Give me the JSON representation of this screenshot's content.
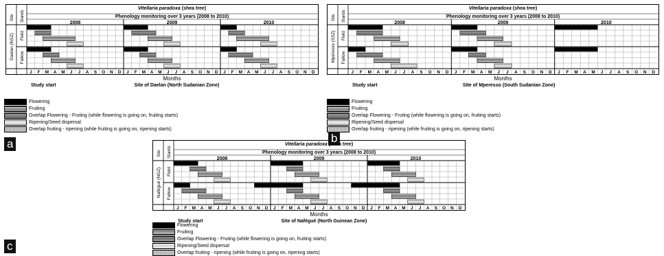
{
  "legend_items": [
    {
      "key": "flowering",
      "label": "Flowering",
      "pattern": "flower"
    },
    {
      "key": "fruiting",
      "label": "Fruiting",
      "pattern": "fruit"
    },
    {
      "key": "overlap_ff",
      "label": "Overlap Flowering - Fruting (while flowering is going on, fruiting starts)",
      "pattern": "overlap1"
    },
    {
      "key": "ripening",
      "label": "Ripening/Seed dispersal",
      "pattern": "ripen"
    },
    {
      "key": "overlap_fr",
      "label": "Overlap fruiting - ripening (while fruiting is going on, ripening starts)",
      "pattern": "overlap2"
    }
  ],
  "common": {
    "species": "Vitellaria paradoxa",
    "species_suffix": " (shea tree)",
    "subtitle": "Phenology monitoring over 3 years (2008 to 2010)",
    "years": [
      "2008",
      "2009",
      "2010"
    ],
    "months": [
      "J",
      "F",
      "M",
      "A",
      "M",
      "J",
      "J",
      "A",
      "S",
      "O",
      "N",
      "D"
    ],
    "xlabel": "Months",
    "study_start": "Study start",
    "col_site": "Site",
    "col_stands": "Stands",
    "stand_field": "Field",
    "stand_fallow": "Fallow"
  },
  "panels": [
    {
      "id": "a",
      "badge": "a",
      "site": "Daelan (NSZ)",
      "site_label": "Site of Daelan (North Sudanian Zone)"
    },
    {
      "id": "b",
      "badge": "b",
      "site": "Mperesso (SSZ)",
      "site_label": "Site of Mperesso (South Sudanian Zone)"
    },
    {
      "id": "c",
      "badge": "c",
      "site": "Nafégué (NGZ)",
      "site_label": "Site of Nafégué (North Guinean Zone)"
    }
  ],
  "colors": {
    "flower": "#000000",
    "fruit": "#555555",
    "overlap1": "#666666",
    "ripen": "#bbbbbb",
    "overlap2": "#999999",
    "grid": "#888888"
  },
  "chart_data": [
    {
      "type": "gantt",
      "panel": "a",
      "site": "Daelan (NSZ)",
      "x_unit": "month index (1 = Jan 2008)",
      "xlim": [
        1,
        36
      ],
      "stands": [
        {
          "name": "Field",
          "phases": [
            {
              "phase": "flowering",
              "start": 1,
              "end": 3
            },
            {
              "phase": "overlap_ff",
              "start": 2,
              "end": 3
            },
            {
              "phase": "fruiting",
              "start": 3,
              "end": 6
            },
            {
              "phase": "ripening",
              "start": 6,
              "end": 7
            },
            {
              "phase": "flowering",
              "start": 13,
              "end": 15
            },
            {
              "phase": "overlap_ff",
              "start": 14,
              "end": 16
            },
            {
              "phase": "fruiting",
              "start": 16,
              "end": 18
            },
            {
              "phase": "ripening",
              "start": 18,
              "end": 19
            },
            {
              "phase": "flowering",
              "start": 25,
              "end": 26
            },
            {
              "phase": "overlap_ff",
              "start": 26,
              "end": 27
            },
            {
              "phase": "fruiting",
              "start": 27,
              "end": 30
            },
            {
              "phase": "ripening",
              "start": 30,
              "end": 31
            }
          ]
        },
        {
          "name": "Fallow",
          "phases": [
            {
              "phase": "flowering",
              "start": 1,
              "end": 3
            },
            {
              "phase": "overlap_ff",
              "start": 3,
              "end": 4
            },
            {
              "phase": "fruiting",
              "start": 4,
              "end": 6
            },
            {
              "phase": "ripening",
              "start": 6,
              "end": 7
            },
            {
              "phase": "flowering",
              "start": 13,
              "end": 15
            },
            {
              "phase": "overlap_ff",
              "start": 15,
              "end": 16
            },
            {
              "phase": "fruiting",
              "start": 16,
              "end": 18
            },
            {
              "phase": "ripening",
              "start": 18,
              "end": 19
            },
            {
              "phase": "flowering",
              "start": 25,
              "end": 26
            },
            {
              "phase": "overlap_ff",
              "start": 26,
              "end": 28
            },
            {
              "phase": "fruiting",
              "start": 28,
              "end": 30
            },
            {
              "phase": "ripening",
              "start": 30,
              "end": 31
            }
          ]
        }
      ]
    },
    {
      "type": "gantt",
      "panel": "b",
      "site": "Mperesso (SSZ)",
      "x_unit": "month index (1 = Jan 2008)",
      "xlim": [
        1,
        36
      ],
      "stands": [
        {
          "name": "Field",
          "phases": [
            {
              "phase": "flowering",
              "start": 1,
              "end": 4
            },
            {
              "phase": "overlap_ff",
              "start": 2,
              "end": 4
            },
            {
              "phase": "fruiting",
              "start": 4,
              "end": 6
            },
            {
              "phase": "ripening",
              "start": 6,
              "end": 7
            },
            {
              "phase": "flowering",
              "start": 13,
              "end": 15
            },
            {
              "phase": "overlap_ff",
              "start": 14,
              "end": 16
            },
            {
              "phase": "fruiting",
              "start": 16,
              "end": 18
            },
            {
              "phase": "ripening",
              "start": 18,
              "end": 19
            },
            {
              "phase": "flowering",
              "start": 25,
              "end": 29
            }
          ]
        },
        {
          "name": "Fallow",
          "phases": [
            {
              "phase": "flowering",
              "start": 1,
              "end": 2
            },
            {
              "phase": "overlap_ff",
              "start": 2,
              "end": 4
            },
            {
              "phase": "fruiting",
              "start": 4,
              "end": 6
            },
            {
              "phase": "ripening",
              "start": 6,
              "end": 8
            },
            {
              "phase": "flowering",
              "start": 13,
              "end": 15
            },
            {
              "phase": "overlap_ff",
              "start": 15,
              "end": 16
            },
            {
              "phase": "fruiting",
              "start": 16,
              "end": 18
            },
            {
              "phase": "ripening",
              "start": 18,
              "end": 19
            },
            {
              "phase": "flowering",
              "start": 25,
              "end": 29
            }
          ]
        }
      ]
    },
    {
      "type": "gantt",
      "panel": "c",
      "site": "Nafégué (NGZ)",
      "x_unit": "month index (1 = Jan 2008)",
      "xlim": [
        1,
        36
      ],
      "stands": [
        {
          "name": "Field",
          "phases": [
            {
              "phase": "flowering",
              "start": 1,
              "end": 3
            },
            {
              "phase": "overlap_ff",
              "start": 3,
              "end": 4
            },
            {
              "phase": "fruiting",
              "start": 4,
              "end": 6
            },
            {
              "phase": "ripening",
              "start": 6,
              "end": 7
            },
            {
              "phase": "flowering",
              "start": 13,
              "end": 16
            },
            {
              "phase": "overlap_ff",
              "start": 15,
              "end": 16
            },
            {
              "phase": "fruiting",
              "start": 16,
              "end": 18
            },
            {
              "phase": "ripening",
              "start": 18,
              "end": 19
            },
            {
              "phase": "flowering",
              "start": 25,
              "end": 28
            },
            {
              "phase": "overlap_ff",
              "start": 27,
              "end": 28
            },
            {
              "phase": "fruiting",
              "start": 28,
              "end": 30
            },
            {
              "phase": "ripening",
              "start": 30,
              "end": 31
            }
          ]
        },
        {
          "name": "Fallow",
          "phases": [
            {
              "phase": "flowering",
              "start": 1,
              "end": 2
            },
            {
              "phase": "overlap_ff",
              "start": 2,
              "end": 4
            },
            {
              "phase": "fruiting",
              "start": 4,
              "end": 6
            },
            {
              "phase": "ripening",
              "start": 6,
              "end": 7
            },
            {
              "phase": "flowering",
              "start": 11,
              "end": 16
            },
            {
              "phase": "overlap_ff",
              "start": 15,
              "end": 16
            },
            {
              "phase": "fruiting",
              "start": 16,
              "end": 18
            },
            {
              "phase": "ripening",
              "start": 18,
              "end": 19
            },
            {
              "phase": "flowering",
              "start": 23,
              "end": 28
            },
            {
              "phase": "overlap_ff",
              "start": 27,
              "end": 28
            },
            {
              "phase": "fruiting",
              "start": 28,
              "end": 30
            },
            {
              "phase": "ripening",
              "start": 30,
              "end": 31
            }
          ]
        }
      ]
    }
  ]
}
